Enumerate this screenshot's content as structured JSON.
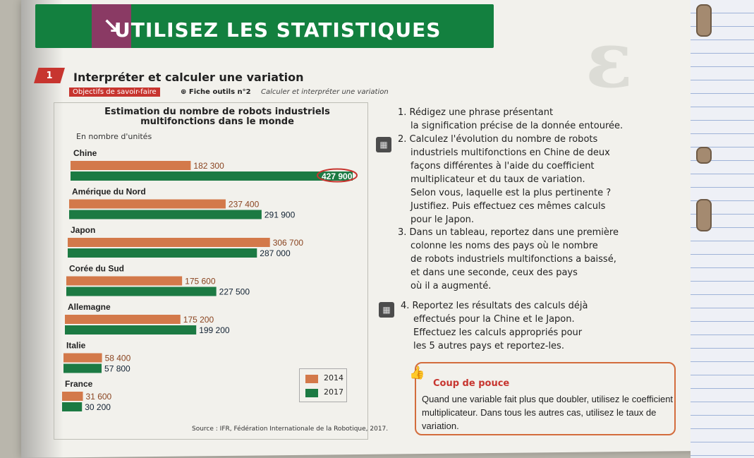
{
  "header": {
    "title": "UTILISEZ LES STATISTIQUES",
    "icon": "arrow-down-right-icon",
    "color": "#13803f"
  },
  "section": {
    "number": "1",
    "title": "Interpréter et calculer une variation",
    "objectives_tag": "Objectifs de savoir-faire",
    "fiche": "Fiche outils n°2",
    "objective": "Calculer et interpréter une variation"
  },
  "chart_data": {
    "type": "bar",
    "title": "Estimation du nombre de robots industriels multifonctions dans le monde",
    "unit": "En nombre d'unités",
    "categories": [
      "Chine",
      "Amérique du Nord",
      "Japon",
      "Corée du Sud",
      "Allemagne",
      "Italie",
      "France"
    ],
    "series": [
      {
        "name": "2014",
        "color": "#d3794a",
        "values": [
          182300,
          237400,
          306700,
          175600,
          175200,
          58400,
          31600
        ],
        "labels": [
          "182 300",
          "237 400",
          "306 700",
          "175 600",
          "175 200",
          "58 400",
          "31 600"
        ]
      },
      {
        "name": "2017",
        "color": "#1c7a43",
        "values": [
          427900,
          291900,
          287000,
          227500,
          199200,
          57800,
          30200
        ],
        "labels": [
          "427 900",
          "291 900",
          "287 000",
          "227 500",
          "199 200",
          "57 800",
          "30 200"
        ]
      }
    ],
    "highlighted": "427 900",
    "source": "Source : IFR, Fédération Internationale de la Robotique, 2017."
  },
  "questions": [
    {
      "num": "1.",
      "lines": [
        "Rédigez une phrase présentant",
        "la signification précise de la donnée entourée."
      ]
    },
    {
      "num": "2.",
      "lines": [
        "Calculez l'évolution du nombre de robots",
        "industriels multifonctions en Chine de deux",
        "façons différentes à l'aide du coefficient",
        "multiplicateur et du taux de variation.",
        "Selon vous, laquelle est la plus pertinente ?",
        "Justifiez. Puis effectuez ces mêmes calculs",
        "pour le Japon."
      ]
    },
    {
      "num": "3.",
      "lines": [
        "Dans un tableau, reportez dans une première",
        "colonne les noms des pays où le nombre",
        "de robots industriels multifonctions a baissé,",
        "et dans une seconde, ceux des pays",
        "où il a augmenté."
      ]
    },
    {
      "num": "4.",
      "lines": [
        "Reportez les résultats des calculs déjà",
        "effectués pour la Chine et le Japon.",
        "Effectuez les calculs appropriés pour",
        "les 5 autres pays et reportez-les."
      ]
    }
  ],
  "tip": {
    "title": "Coup de pouce",
    "text": "Quand une variable fait plus que doubler, utilisez le coefficient multiplicateur. Dans tous les autres cas, utilisez le taux de variation.",
    "icon": "thumbs-up-icon"
  }
}
